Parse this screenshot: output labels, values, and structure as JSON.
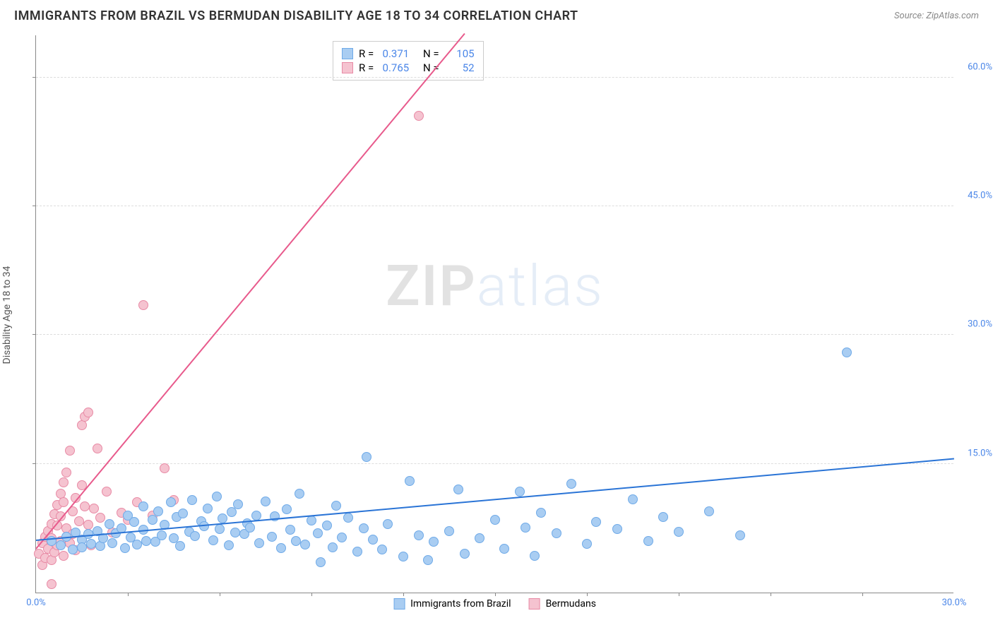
{
  "title": "IMMIGRANTS FROM BRAZIL VS BERMUDAN DISABILITY AGE 18 TO 34 CORRELATION CHART",
  "title_color": "#333333",
  "source_label": "Source: ZipAtlas.com",
  "ylabel": "Disability Age 18 to 34",
  "watermark_a": "ZIP",
  "watermark_b": "atlas",
  "axes": {
    "x_min": 0.0,
    "x_max": 30.0,
    "y_min": 0.0,
    "y_max": 65.0,
    "x_ticks": [
      0.0,
      30.0
    ],
    "x_tick_labels": [
      "0.0%",
      "30.0%"
    ],
    "x_minor_ticks": [
      3,
      6,
      9,
      12,
      15,
      18,
      21,
      24,
      27
    ],
    "y_ticks": [
      15.0,
      30.0,
      45.0,
      60.0
    ],
    "y_tick_labels": [
      "15.0%",
      "30.0%",
      "45.0%",
      "60.0%"
    ],
    "tick_label_color": "#4a86e8",
    "grid_color": "#dddddd"
  },
  "series": {
    "brazil": {
      "label": "Immigrants from Brazil",
      "marker_fill": "#a9cdf2",
      "marker_stroke": "#6faae8",
      "marker_size": 14,
      "line_color": "#2a74d6",
      "R": "0.371",
      "N": "105",
      "trend": {
        "x1": 0.0,
        "y1": 6.0,
        "x2": 30.0,
        "y2": 15.5
      },
      "points": [
        [
          0.5,
          6.0
        ],
        [
          0.8,
          5.5
        ],
        [
          1.0,
          6.5
        ],
        [
          1.2,
          5.0
        ],
        [
          1.3,
          7.0
        ],
        [
          1.5,
          6.2
        ],
        [
          1.5,
          5.3
        ],
        [
          1.7,
          6.8
        ],
        [
          1.8,
          5.7
        ],
        [
          2.0,
          7.2
        ],
        [
          2.1,
          5.4
        ],
        [
          2.2,
          6.3
        ],
        [
          2.4,
          8.0
        ],
        [
          2.5,
          5.8
        ],
        [
          2.6,
          6.9
        ],
        [
          2.8,
          7.5
        ],
        [
          2.9,
          5.2
        ],
        [
          3.0,
          9.0
        ],
        [
          3.1,
          6.4
        ],
        [
          3.2,
          8.2
        ],
        [
          3.3,
          5.6
        ],
        [
          3.5,
          7.3
        ],
        [
          3.5,
          10.0
        ],
        [
          3.6,
          6.0
        ],
        [
          3.8,
          8.5
        ],
        [
          3.9,
          5.9
        ],
        [
          4.0,
          9.5
        ],
        [
          4.1,
          6.7
        ],
        [
          4.2,
          7.9
        ],
        [
          4.4,
          10.5
        ],
        [
          4.5,
          6.3
        ],
        [
          4.6,
          8.8
        ],
        [
          4.7,
          5.4
        ],
        [
          4.8,
          9.2
        ],
        [
          5.0,
          7.1
        ],
        [
          5.1,
          10.8
        ],
        [
          5.2,
          6.6
        ],
        [
          5.4,
          8.3
        ],
        [
          5.5,
          7.7
        ],
        [
          5.6,
          9.8
        ],
        [
          5.8,
          6.1
        ],
        [
          5.9,
          11.2
        ],
        [
          6.0,
          7.4
        ],
        [
          6.1,
          8.6
        ],
        [
          6.3,
          5.5
        ],
        [
          6.4,
          9.4
        ],
        [
          6.5,
          7.0
        ],
        [
          6.6,
          10.3
        ],
        [
          6.8,
          6.8
        ],
        [
          6.9,
          8.1
        ],
        [
          7.0,
          7.6
        ],
        [
          7.2,
          9.0
        ],
        [
          7.3,
          5.8
        ],
        [
          7.5,
          10.6
        ],
        [
          7.7,
          6.5
        ],
        [
          7.8,
          8.9
        ],
        [
          8.0,
          5.2
        ],
        [
          8.2,
          9.7
        ],
        [
          8.3,
          7.3
        ],
        [
          8.5,
          6.0
        ],
        [
          8.6,
          11.5
        ],
        [
          8.8,
          5.6
        ],
        [
          9.0,
          8.4
        ],
        [
          9.2,
          6.9
        ],
        [
          9.3,
          3.5
        ],
        [
          9.5,
          7.8
        ],
        [
          9.7,
          5.3
        ],
        [
          9.8,
          10.1
        ],
        [
          10.0,
          6.4
        ],
        [
          10.2,
          8.7
        ],
        [
          10.5,
          4.8
        ],
        [
          10.7,
          7.5
        ],
        [
          10.8,
          15.8
        ],
        [
          11.0,
          6.2
        ],
        [
          11.3,
          5.0
        ],
        [
          11.5,
          8.0
        ],
        [
          12.0,
          4.2
        ],
        [
          12.2,
          13.0
        ],
        [
          12.5,
          6.7
        ],
        [
          12.8,
          3.8
        ],
        [
          13.0,
          5.9
        ],
        [
          13.5,
          7.2
        ],
        [
          13.8,
          12.0
        ],
        [
          14.0,
          4.5
        ],
        [
          14.5,
          6.3
        ],
        [
          15.0,
          8.5
        ],
        [
          15.3,
          5.1
        ],
        [
          15.8,
          11.8
        ],
        [
          16.0,
          7.6
        ],
        [
          16.3,
          4.3
        ],
        [
          16.5,
          9.3
        ],
        [
          17.0,
          6.9
        ],
        [
          17.5,
          12.7
        ],
        [
          18.0,
          5.7
        ],
        [
          18.3,
          8.2
        ],
        [
          19.0,
          7.4
        ],
        [
          19.5,
          10.9
        ],
        [
          20.0,
          6.0
        ],
        [
          20.5,
          8.8
        ],
        [
          21.0,
          7.1
        ],
        [
          22.0,
          9.5
        ],
        [
          23.0,
          6.7
        ],
        [
          26.5,
          28.0
        ]
      ]
    },
    "bermudans": {
      "label": "Bermudans",
      "marker_fill": "#f5c3d0",
      "marker_stroke": "#e88aa5",
      "marker_size": 14,
      "line_color": "#e85a8c",
      "R": "0.765",
      "N": "52",
      "trend": {
        "x1": 0.0,
        "y1": 5.0,
        "x2": 14.0,
        "y2": 65.0
      },
      "points": [
        [
          0.1,
          4.5
        ],
        [
          0.2,
          5.8
        ],
        [
          0.2,
          3.2
        ],
        [
          0.3,
          6.5
        ],
        [
          0.3,
          4.0
        ],
        [
          0.4,
          7.2
        ],
        [
          0.4,
          5.1
        ],
        [
          0.5,
          8.0
        ],
        [
          0.5,
          3.8
        ],
        [
          0.5,
          6.3
        ],
        [
          0.6,
          9.1
        ],
        [
          0.6,
          4.7
        ],
        [
          0.7,
          10.2
        ],
        [
          0.7,
          5.5
        ],
        [
          0.7,
          7.8
        ],
        [
          0.8,
          11.5
        ],
        [
          0.8,
          6.0
        ],
        [
          0.8,
          8.9
        ],
        [
          0.9,
          12.8
        ],
        [
          0.9,
          4.3
        ],
        [
          0.9,
          10.5
        ],
        [
          1.0,
          7.5
        ],
        [
          1.0,
          14.0
        ],
        [
          1.1,
          5.8
        ],
        [
          1.1,
          16.5
        ],
        [
          1.2,
          9.5
        ],
        [
          1.2,
          6.8
        ],
        [
          1.3,
          11.0
        ],
        [
          1.3,
          4.9
        ],
        [
          1.4,
          8.3
        ],
        [
          1.5,
          12.5
        ],
        [
          1.5,
          6.2
        ],
        [
          1.5,
          19.5
        ],
        [
          1.6,
          10.0
        ],
        [
          1.6,
          20.5
        ],
        [
          1.7,
          7.9
        ],
        [
          1.7,
          21.0
        ],
        [
          1.8,
          5.5
        ],
        [
          1.9,
          9.8
        ],
        [
          2.0,
          16.8
        ],
        [
          2.1,
          8.7
        ],
        [
          2.3,
          11.8
        ],
        [
          2.5,
          7.0
        ],
        [
          2.8,
          9.3
        ],
        [
          3.0,
          8.5
        ],
        [
          3.3,
          10.5
        ],
        [
          3.8,
          9.0
        ],
        [
          4.2,
          14.5
        ],
        [
          4.5,
          10.8
        ],
        [
          3.5,
          33.5
        ],
        [
          0.5,
          1.0
        ],
        [
          12.5,
          55.5
        ]
      ]
    }
  },
  "legend_top": {
    "R_label": "R =",
    "N_label": "N ="
  }
}
